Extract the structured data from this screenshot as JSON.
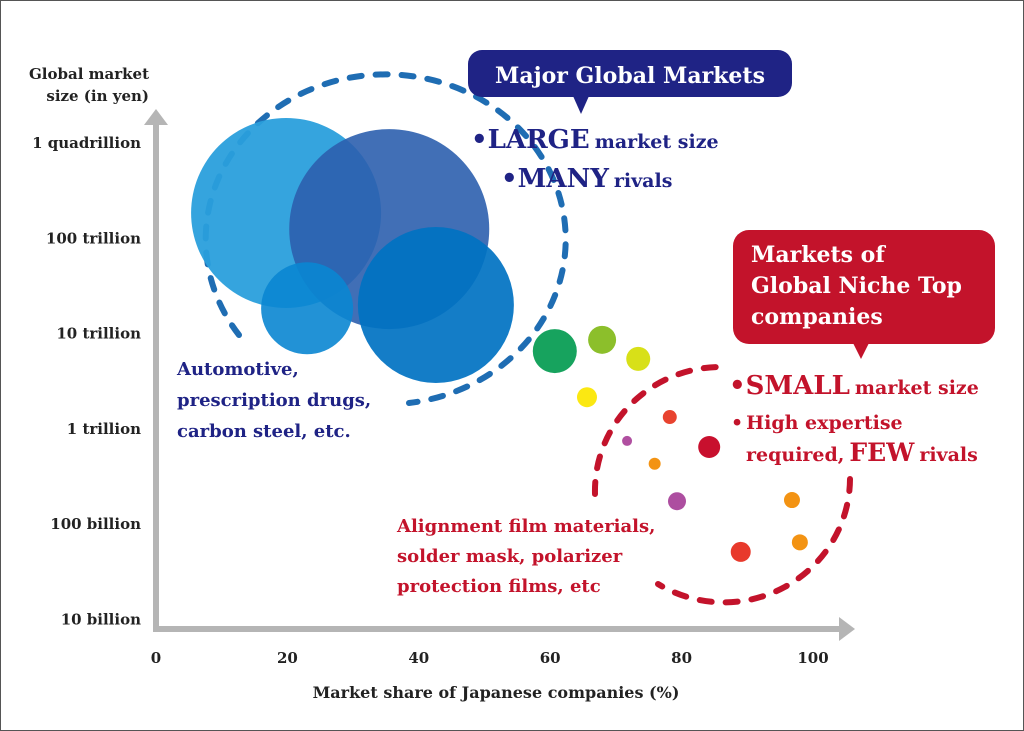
{
  "chart_data": {
    "type": "scatter",
    "subtype": "bubble",
    "ylabel": [
      "Global market",
      "size (in yen)"
    ],
    "xlabel": "Market share of Japanese companies (%)",
    "x_ticks": [
      "0",
      "20",
      "40",
      "60",
      "80",
      "100"
    ],
    "x_tick_values": [
      0,
      20,
      40,
      60,
      80,
      100
    ],
    "xlim": [
      0,
      105
    ],
    "y_scale": "log",
    "y_ticks": [
      "1 quadrillion",
      "100 trillion",
      "10 trillion",
      "1 trillion",
      "100 billion",
      "10 billion"
    ],
    "y_tick_values_yen": [
      1000000000000000.0,
      100000000000000.0,
      10000000000000.0,
      1000000000000.0,
      100000000000.0,
      10000000000.0
    ],
    "grid": false,
    "bubbles": [
      {
        "x": 19.8,
        "y_yen": 180000000000000.0,
        "size": 95,
        "color": "#2a9fdc",
        "opacity": 0.95
      },
      {
        "x": 35.5,
        "y_yen": 122000000000000.0,
        "size": 100,
        "color": "#2c5fae",
        "opacity": 0.9
      },
      {
        "x": 23.0,
        "y_yen": 18000000000000.0,
        "size": 46,
        "color": "#0a86d2",
        "opacity": 0.9
      },
      {
        "x": 42.6,
        "y_yen": 19500000000000.0,
        "size": 78,
        "color": "#0072c2",
        "opacity": 0.92
      },
      {
        "x": 60.7,
        "y_yen": 6400000000000.0,
        "size": 22,
        "color": "#17a35e",
        "opacity": 1
      },
      {
        "x": 67.9,
        "y_yen": 8400000000000.0,
        "size": 14,
        "color": "#8cbf2b",
        "opacity": 1
      },
      {
        "x": 73.4,
        "y_yen": 5300000000000.0,
        "size": 12,
        "color": "#d8e018",
        "opacity": 1
      },
      {
        "x": 65.6,
        "y_yen": 2100000000000.0,
        "size": 10,
        "color": "#fbe812",
        "opacity": 1
      },
      {
        "x": 78.2,
        "y_yen": 1300000000000.0,
        "size": 7,
        "color": "#e8432f",
        "opacity": 1
      },
      {
        "x": 71.7,
        "y_yen": 730000000000.0,
        "size": 5,
        "color": "#b04fa0",
        "opacity": 1
      },
      {
        "x": 84.2,
        "y_yen": 630000000000.0,
        "size": 11,
        "color": "#c8102e",
        "opacity": 1
      },
      {
        "x": 75.9,
        "y_yen": 420000000000.0,
        "size": 6,
        "color": "#f39313",
        "opacity": 1
      },
      {
        "x": 79.3,
        "y_yen": 170000000000.0,
        "size": 9,
        "color": "#ad4ea0",
        "opacity": 1
      },
      {
        "x": 96.8,
        "y_yen": 175000000000.0,
        "size": 8,
        "color": "#f39313",
        "opacity": 1
      },
      {
        "x": 98.0,
        "y_yen": 63000000000.0,
        "size": 8,
        "color": "#f39313",
        "opacity": 1
      },
      {
        "x": 89.0,
        "y_yen": 50000000000.0,
        "size": 10,
        "color": "#e83a2c",
        "opacity": 1
      }
    ],
    "annotations": {
      "major": {
        "title": "Major Global Markets",
        "bullet1_big": "LARGE",
        "bullet1_rest": "market size",
        "bullet2_big": "MANY",
        "bullet2_rest": "rivals",
        "examples": [
          "Automotive,",
          "prescription drugs,",
          "carbon steel, etc."
        ],
        "color": "#1f2385",
        "ring_color": "#1f6db3"
      },
      "niche": {
        "title": [
          "Markets of",
          "Global Niche Top",
          "companies"
        ],
        "bullet1_big": "SMALL",
        "bullet1_rest": "market size",
        "bullet2_line1": "High expertise",
        "bullet2_pre": "required,",
        "bullet2_big": "FEW",
        "bullet2_rest": "rivals",
        "examples": [
          "Alignment film materials,",
          "solder mask, polarizer",
          "protection films, etc"
        ],
        "color": "#c3132b"
      }
    },
    "axis_color": "#b5b5b5"
  }
}
